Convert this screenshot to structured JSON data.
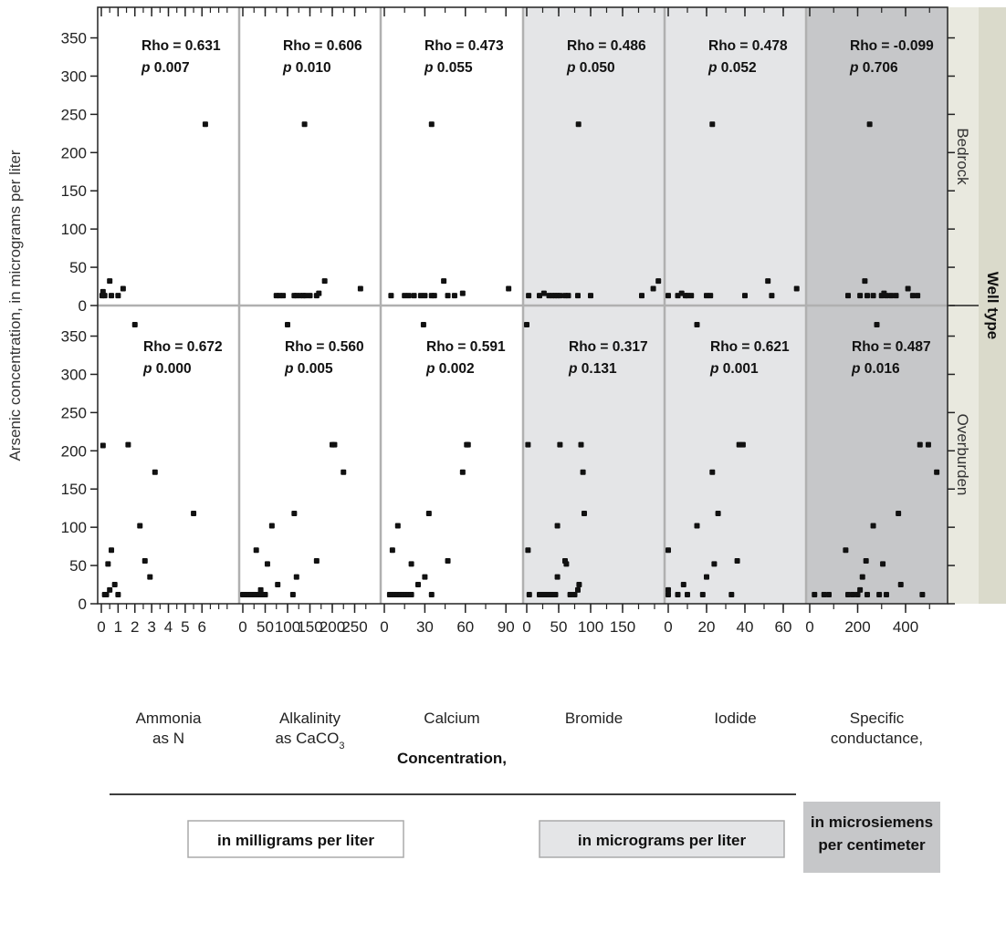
{
  "chart_data": {
    "type": "scatter",
    "ylabel": "Arsenic concentration, in micrograms per liter",
    "xlabel": "Concentration,",
    "ylim": [
      0,
      390
    ],
    "yticks": [
      0,
      50,
      100,
      150,
      200,
      250,
      300,
      350
    ],
    "facet_title": "Well type",
    "rows": [
      {
        "name": "Bedrock"
      },
      {
        "name": "Overburden"
      }
    ],
    "columns": [
      {
        "name": "Ammonia as N",
        "label_lines": [
          "Ammonia",
          "as N"
        ],
        "unit_group": 0,
        "xlim": [
          0,
          8
        ],
        "xticks": [
          0,
          1,
          2,
          3,
          4,
          5,
          6
        ],
        "stats": [
          {
            "rho": "Rho = 0.631",
            "p": "0.007"
          },
          {
            "rho": "Rho = 0.672",
            "p": "0.000"
          }
        ],
        "points": [
          [
            [
              6.2,
              237
            ],
            [
              0.1,
              18
            ],
            [
              0.2,
              13
            ],
            [
              0.5,
              32
            ],
            [
              0.6,
              13
            ],
            [
              1.0,
              13
            ],
            [
              1.3,
              22
            ],
            [
              0.05,
              13
            ]
          ],
          [
            [
              0.1,
              207
            ],
            [
              0.2,
              12
            ],
            [
              0.3,
              12
            ],
            [
              0.4,
              52
            ],
            [
              0.6,
              70
            ],
            [
              0.5,
              18
            ],
            [
              0.8,
              25
            ],
            [
              1.0,
              12
            ],
            [
              1.6,
              208
            ],
            [
              2.0,
              365
            ],
            [
              2.3,
              102
            ],
            [
              2.6,
              56
            ],
            [
              2.9,
              35
            ],
            [
              3.2,
              172
            ],
            [
              5.5,
              118
            ]
          ]
        ]
      },
      {
        "name": "Alkalinity as CaCO3",
        "label_lines": [
          "Alkalinity",
          "as CaCO"
        ],
        "label_sub": "3",
        "unit_group": 0,
        "xlim": [
          0,
          300
        ],
        "xticks": [
          0,
          50,
          100,
          150,
          200,
          250
        ],
        "stats": [
          {
            "rho": "Rho = 0.606",
            "p": "0.010"
          },
          {
            "rho": "Rho = 0.560",
            "p": "0.005"
          }
        ],
        "points": [
          [
            [
              138,
              237
            ],
            [
              75,
              13
            ],
            [
              82,
              13
            ],
            [
              90,
              13
            ],
            [
              115,
              13
            ],
            [
              120,
              13
            ],
            [
              128,
              13
            ],
            [
              135,
              13
            ],
            [
              140,
              13
            ],
            [
              150,
              13
            ],
            [
              165,
              13
            ],
            [
              170,
              16
            ],
            [
              183,
              32
            ],
            [
              263,
              22
            ]
          ],
          [
            [
              0,
              12
            ],
            [
              5,
              12
            ],
            [
              10,
              12
            ],
            [
              15,
              12
            ],
            [
              20,
              12
            ],
            [
              28,
              12
            ],
            [
              35,
              12
            ],
            [
              42,
              12
            ],
            [
              50,
              12
            ],
            [
              30,
              70
            ],
            [
              40,
              18
            ],
            [
              55,
              52
            ],
            [
              65,
              102
            ],
            [
              78,
              25
            ],
            [
              100,
              365
            ],
            [
              112,
              12
            ],
            [
              115,
              118
            ],
            [
              120,
              35
            ],
            [
              165,
              56
            ],
            [
              200,
              208
            ],
            [
              205,
              208
            ],
            [
              225,
              172
            ]
          ]
        ]
      },
      {
        "name": "Calcium",
        "label_lines": [
          "Calcium"
        ],
        "unit_group": 0,
        "xlim": [
          0,
          100
        ],
        "xticks": [
          0,
          30,
          60,
          90
        ],
        "stats": [
          {
            "rho": "Rho = 0.473",
            "p": "0.055"
          },
          {
            "rho": "Rho = 0.591",
            "p": "0.002"
          }
        ],
        "points": [
          [
            [
              35,
              237
            ],
            [
              5,
              13
            ],
            [
              15,
              13
            ],
            [
              18,
              13
            ],
            [
              22,
              13
            ],
            [
              27,
              13
            ],
            [
              30,
              13
            ],
            [
              35,
              13
            ],
            [
              37,
              13
            ],
            [
              44,
              32
            ],
            [
              47,
              13
            ],
            [
              52,
              13
            ],
            [
              58,
              16
            ],
            [
              92,
              22
            ]
          ],
          [
            [
              4,
              12
            ],
            [
              6,
              12
            ],
            [
              8,
              12
            ],
            [
              10,
              12
            ],
            [
              12,
              12
            ],
            [
              14,
              12
            ],
            [
              16,
              12
            ],
            [
              18,
              12
            ],
            [
              20,
              12
            ],
            [
              6,
              70
            ],
            [
              10,
              102
            ],
            [
              20,
              52
            ],
            [
              25,
              25
            ],
            [
              29,
              365
            ],
            [
              30,
              35
            ],
            [
              33,
              118
            ],
            [
              35,
              12
            ],
            [
              47,
              56
            ],
            [
              58,
              172
            ],
            [
              61,
              208
            ],
            [
              62,
              208
            ]
          ]
        ]
      },
      {
        "name": "Bromide",
        "label_lines": [
          "Bromide"
        ],
        "unit_group": 1,
        "xlim": [
          0,
          210
        ],
        "xticks": [
          0,
          50,
          100,
          150
        ],
        "tick_labels": [
          "0",
          "50",
          "100",
          "150"
        ],
        "stats": [
          {
            "rho": "Rho = 0.486",
            "p": "0.050"
          },
          {
            "rho": "Rho = 0.317",
            "p": "0.131"
          }
        ],
        "points": [
          [
            [
              81,
              237
            ],
            [
              3,
              13
            ],
            [
              20,
              13
            ],
            [
              27,
              16
            ],
            [
              35,
              13
            ],
            [
              40,
              13
            ],
            [
              44,
              13
            ],
            [
              48,
              13
            ],
            [
              52,
              13
            ],
            [
              60,
              13
            ],
            [
              65,
              13
            ],
            [
              80,
              13
            ],
            [
              100,
              13
            ],
            [
              180,
              13
            ],
            [
              198,
              22
            ],
            [
              206,
              32
            ]
          ],
          [
            [
              0,
              365
            ],
            [
              2,
              208
            ],
            [
              2,
              70
            ],
            [
              4,
              12
            ],
            [
              20,
              12
            ],
            [
              25,
              12
            ],
            [
              30,
              12
            ],
            [
              35,
              12
            ],
            [
              40,
              12
            ],
            [
              45,
              12
            ],
            [
              48,
              102
            ],
            [
              48,
              35
            ],
            [
              52,
              208
            ],
            [
              60,
              56
            ],
            [
              62,
              52
            ],
            [
              68,
              12
            ],
            [
              75,
              12
            ],
            [
              80,
              18
            ],
            [
              82,
              25
            ],
            [
              85,
              208
            ],
            [
              88,
              172
            ],
            [
              90,
              118
            ]
          ]
        ]
      },
      {
        "name": "Iodide",
        "label_lines": [
          "Iodide"
        ],
        "unit_group": 1,
        "xlim": [
          0,
          70
        ],
        "xticks": [
          0,
          20,
          40,
          60
        ],
        "stats": [
          {
            "rho": "Rho = 0.478",
            "p": "0.052"
          },
          {
            "rho": "Rho = 0.621",
            "p": "0.001"
          }
        ],
        "points": [
          [
            [
              23,
              237
            ],
            [
              0,
              13
            ],
            [
              5,
              13
            ],
            [
              7,
              16
            ],
            [
              9,
              13
            ],
            [
              10,
              13
            ],
            [
              12,
              13
            ],
            [
              20,
              13
            ],
            [
              22,
              13
            ],
            [
              40,
              13
            ],
            [
              52,
              32
            ],
            [
              54,
              13
            ],
            [
              67,
              22
            ]
          ],
          [
            [
              0,
              70
            ],
            [
              0,
              18
            ],
            [
              0,
              12
            ],
            [
              5,
              12
            ],
            [
              8,
              25
            ],
            [
              10,
              12
            ],
            [
              15,
              102
            ],
            [
              15,
              365
            ],
            [
              18,
              12
            ],
            [
              20,
              35
            ],
            [
              23,
              172
            ],
            [
              24,
              52
            ],
            [
              26,
              118
            ],
            [
              36,
              56
            ],
            [
              37,
              208
            ],
            [
              39,
              208
            ],
            [
              33,
              12
            ]
          ]
        ]
      },
      {
        "name": "Specific conductance",
        "label_lines": [
          "Specific",
          "conductance,"
        ],
        "unit_group": 2,
        "xlim": [
          0,
          560
        ],
        "xticks": [
          0,
          200,
          400
        ],
        "stats": [
          {
            "rho": "Rho = -0.099",
            "p": "0.706"
          },
          {
            "rho": "Rho = 0.487",
            "p": "0.016"
          }
        ],
        "points": [
          [
            [
              250,
              237
            ],
            [
              160,
              13
            ],
            [
              210,
              13
            ],
            [
              230,
              32
            ],
            [
              240,
              13
            ],
            [
              265,
              13
            ],
            [
              300,
              13
            ],
            [
              310,
              16
            ],
            [
              320,
              13
            ],
            [
              340,
              13
            ],
            [
              360,
              13
            ],
            [
              410,
              22
            ],
            [
              430,
              13
            ],
            [
              450,
              13
            ]
          ],
          [
            [
              20,
              12
            ],
            [
              60,
              12
            ],
            [
              80,
              12
            ],
            [
              150,
              70
            ],
            [
              160,
              12
            ],
            [
              180,
              12
            ],
            [
              200,
              12
            ],
            [
              210,
              18
            ],
            [
              220,
              35
            ],
            [
              235,
              56
            ],
            [
              240,
              12
            ],
            [
              265,
              102
            ],
            [
              280,
              365
            ],
            [
              290,
              12
            ],
            [
              305,
              52
            ],
            [
              320,
              12
            ],
            [
              370,
              118
            ],
            [
              380,
              25
            ],
            [
              460,
              208
            ],
            [
              470,
              12
            ],
            [
              495,
              208
            ],
            [
              530,
              172
            ]
          ]
        ]
      }
    ],
    "unit_groups": [
      {
        "label": "in milligrams per liter",
        "fill": "#ffffff"
      },
      {
        "label": "in micrograms per liter",
        "fill": "#e4e5e7"
      },
      {
        "label_lines": [
          "in microsiemens",
          "per centimeter"
        ],
        "fill": "#c6c7c9"
      }
    ]
  },
  "colors": {
    "point": "#111111",
    "frame": "#222222",
    "panel_divider": "#b0b0b0",
    "strip": "#e9e9df",
    "strip_dark": "#dadacb"
  }
}
